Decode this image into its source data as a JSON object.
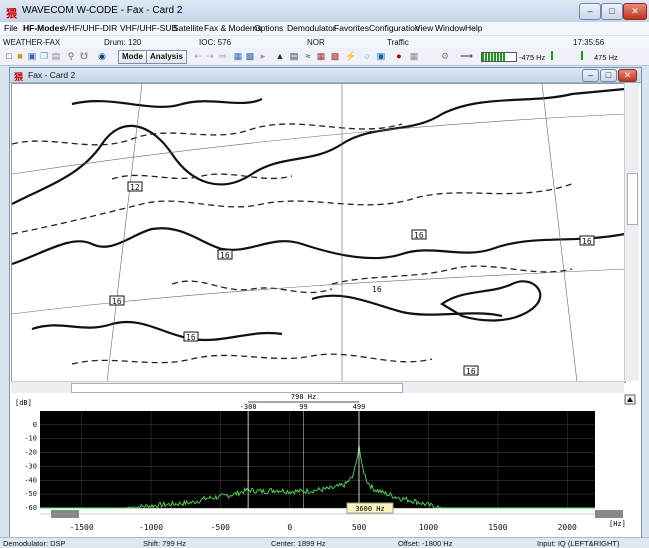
{
  "window": {
    "title": "WAVECOM W-CODE - Fax - Card 2"
  },
  "menu": [
    "File",
    "HF-Modes",
    "VHF/UHF-DIR",
    "VHF/UHF-SUB",
    "Satellite",
    "Fax & Moderns",
    "Options",
    "Demodulator",
    "Favorites",
    "Configuration",
    "View",
    "Window",
    "Help"
  ],
  "status": {
    "mode": "WEATHER-FAX",
    "drum": "Drum: 120",
    "ioc": "IOC: 576",
    "nor": "NOR",
    "traffic": "Traffic",
    "time": "17:35:56"
  },
  "toolbar": {
    "mode_label": "Mode",
    "analysis_label": "Analysis",
    "freq_left": "-475 Hz",
    "freq_right": "475 Hz"
  },
  "child": {
    "title": "Fax - Card 2"
  },
  "spectrum": {
    "width_label": "798 Hz",
    "marker_left": "-300",
    "marker_center": "99",
    "marker_right": "499",
    "db_unit": "[dB]",
    "center_label": "3600 Hz",
    "hz_unit": "[Hz]"
  },
  "chart_data": {
    "type": "line",
    "title": "",
    "xlabel": "[Hz]",
    "ylabel": "[dB]",
    "xlim": [
      -1800,
      2200
    ],
    "ylim": [
      -60,
      10
    ],
    "x_ticks": [
      "-1500",
      "-1000",
      "-500",
      "0",
      "500",
      "1000",
      "1500",
      "2000"
    ],
    "y_ticks": [
      "0",
      "-10",
      "-20",
      "-30",
      "-40",
      "-50",
      "-60"
    ],
    "series": [
      {
        "x": [
          -1800,
          -1200,
          -700,
          -600,
          -500,
          -400,
          -300,
          -200,
          -100,
          0,
          100,
          200,
          300,
          400,
          450,
          480,
          499,
          520,
          560,
          600,
          700,
          800,
          900,
          1000,
          1100,
          2200
        ],
        "values": [
          -60,
          -60,
          -56,
          -53,
          -52,
          -50,
          -47,
          -48,
          -47,
          -48,
          -48,
          -47,
          -46,
          -43,
          -38,
          -28,
          -14,
          -30,
          -41,
          -46,
          -50,
          -53,
          -55,
          -58,
          -60,
          -60
        ]
      }
    ]
  },
  "statusbar": {
    "demodulator": "Demodulator: DSP",
    "shift": "Shift: 799 Hz",
    "center": "Center: 1899 Hz",
    "offset": "Offset: -1800 Hz",
    "input": "Input: IQ (LEFT&RIGHT)"
  }
}
